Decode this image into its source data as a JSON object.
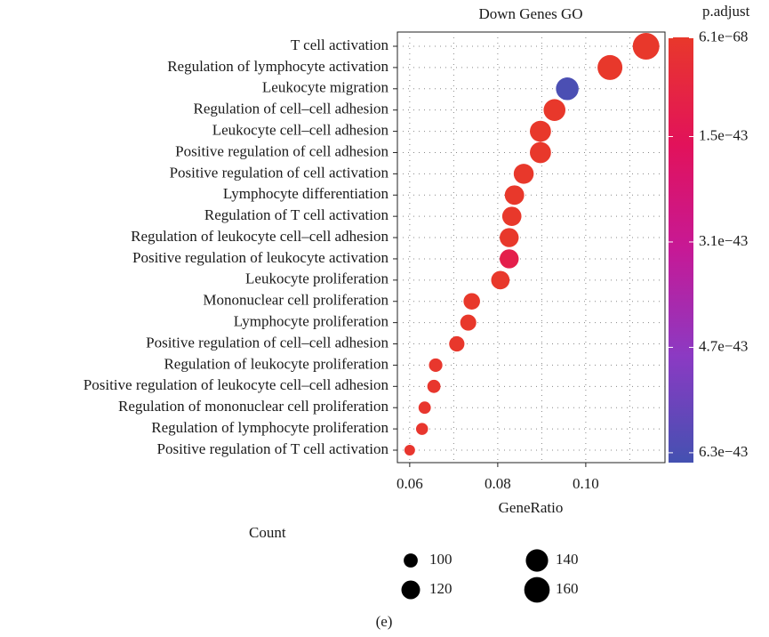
{
  "chart_data": {
    "type": "dot",
    "title": "Down Genes GO",
    "xlabel": "GeneRatio",
    "categories": [
      "T cell activation",
      "Regulation of lymphocyte activation",
      "Leukocyte migration",
      "Regulation of cell–cell adhesion",
      "Leukocyte cell–cell adhesion",
      "Positive regulation of cell adhesion",
      "Positive regulation of cell activation",
      "Lymphocyte differentiation",
      "Regulation of T cell activation",
      "Regulation of leukocyte cell–cell adhesion",
      "Positive regulation of leukocyte activation",
      "Leukocyte proliferation",
      "Mononuclear cell proliferation",
      "Lymphocyte proliferation",
      "Positive regulation of cell–cell adhesion",
      "Regulation of leukocyte proliferation",
      "Positive regulation of leukocyte cell–cell adhesion",
      "Regulation of mononuclear cell proliferation",
      "Regulation of lymphocyte proliferation",
      "Positive regulation of T cell activation"
    ],
    "values": [
      0.1137,
      0.1055,
      0.0958,
      0.0929,
      0.0897,
      0.0897,
      0.0859,
      0.0838,
      0.0832,
      0.0826,
      0.0826,
      0.0806,
      0.0741,
      0.0733,
      0.0707,
      0.0659,
      0.0655,
      0.0634,
      0.0628,
      0.06
    ],
    "counts": [
      168,
      156,
      142,
      137,
      133,
      133,
      127,
      124,
      123,
      122,
      122,
      119,
      110,
      108,
      105,
      98,
      97,
      94,
      93,
      89
    ],
    "p_adjust": [
      6.1e-68,
      2e-60,
      6.3e-43,
      5e-55,
      1e-52,
      3e-52,
      2e-50,
      1e-49,
      3e-49,
      5e-48,
      1.1e-43,
      2e-47,
      4e-46,
      8e-46,
      2e-45,
      5e-45,
      6e-45,
      8e-45,
      9e-45,
      1e-44
    ],
    "xlim": [
      0.0572,
      0.118
    ],
    "xticks": [
      0.06,
      0.08,
      {
        "value": 0.1,
        "label": "0.10"
      }
    ],
    "grid": true,
    "colorbar": {
      "title": "p.adjust",
      "lim": [
        -6e-46,
        6.45e-43
      ],
      "ticks": [
        {
          "value": 6.1e-68,
          "label": "6.1e−68"
        },
        {
          "value": 1.5e-43,
          "label": "1.5e−43"
        },
        {
          "value": 3.1e-43,
          "label": "3.1e−43"
        },
        {
          "value": 4.7e-43,
          "label": "4.7e−43"
        },
        {
          "value": 6.3e-43,
          "label": "6.3e−43"
        }
      ],
      "colors": [
        "#e8382b",
        "#e2125a",
        "#c61996",
        "#8b3ac3",
        "#4451b1"
      ]
    },
    "size_legend": {
      "title": "Count",
      "values": [
        100,
        120,
        140,
        160
      ]
    }
  },
  "caption": "(e)"
}
